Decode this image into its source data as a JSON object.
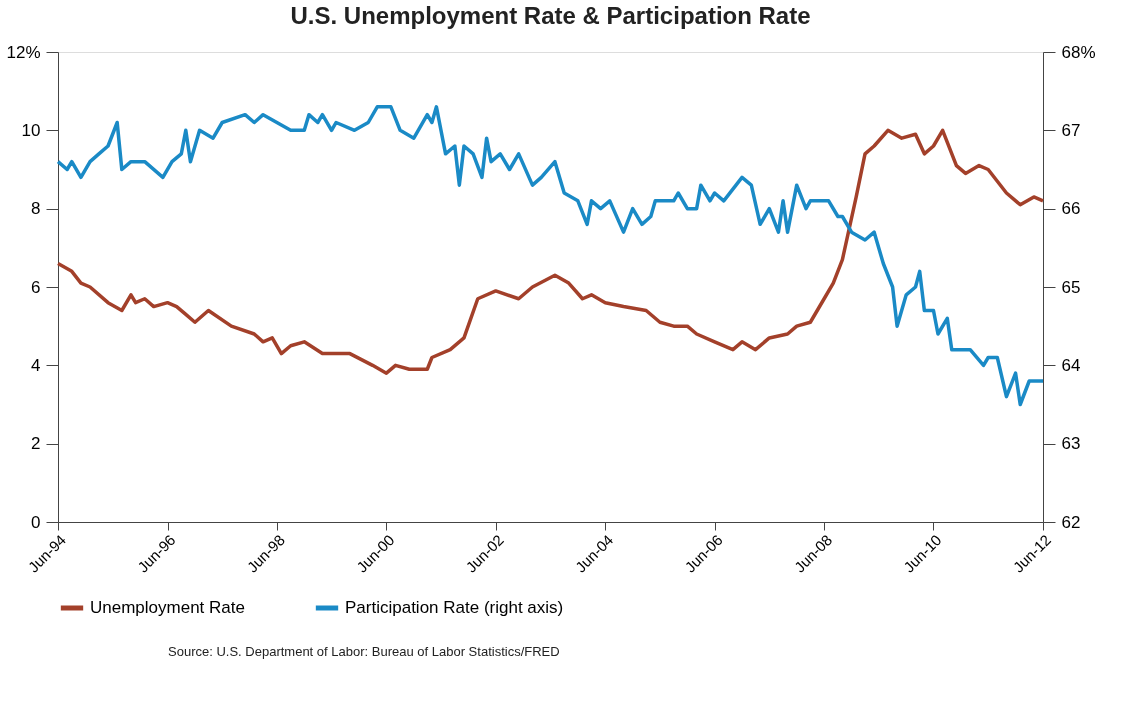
{
  "chart_data": {
    "type": "line",
    "title": "U.S. Unemployment Rate & Participation Rate",
    "annotations": [
      "Source: U.S. Department of Labor: Bureau of Labor Statistics/FRED"
    ],
    "xlim": [
      "1994-06",
      "2012-06"
    ],
    "xticks": [
      {
        "value": "1994-06",
        "label": "Jun-94"
      },
      {
        "value": "1996-06",
        "label": "Jun-96"
      },
      {
        "value": "1998-06",
        "label": "Jun-98"
      },
      {
        "value": "2000-06",
        "label": "Jun-00"
      },
      {
        "value": "2002-06",
        "label": "Jun-02"
      },
      {
        "value": "2004-06",
        "label": "Jun-04"
      },
      {
        "value": "2006-06",
        "label": "Jun-06"
      },
      {
        "value": "2008-06",
        "label": "Jun-08"
      },
      {
        "value": "2010-06",
        "label": "Jun-10"
      },
      {
        "value": "2012-06",
        "label": "Jun-12"
      }
    ],
    "ylim": [
      0,
      12
    ],
    "yticks": [
      0,
      2,
      4,
      6,
      8,
      10,
      {
        "value": 12,
        "label": "12%"
      }
    ],
    "y2lim": [
      62,
      68
    ],
    "y2ticks": [
      62,
      63,
      64,
      65,
      66,
      67,
      {
        "value": 68,
        "label": "68%"
      }
    ],
    "legend": "bottom",
    "grid": false,
    "line_style": "solid",
    "series": [
      {
        "name": "Unemployment Rate",
        "color": "#a3402a",
        "axis": "y",
        "x": [
          "1994-06",
          "1994-09",
          "1994-11",
          "1995-01",
          "1995-05",
          "1995-08",
          "1995-10",
          "1995-11",
          "1996-01",
          "1996-03",
          "1996-06",
          "1996-08",
          "1996-10",
          "1996-12",
          "1997-03",
          "1997-08",
          "1998-01",
          "1998-03",
          "1998-05",
          "1998-07",
          "1998-09",
          "1998-12",
          "1999-04",
          "1999-10",
          "2000-03",
          "2000-06",
          "2000-08",
          "2000-11",
          "2001-03",
          "2001-04",
          "2001-08",
          "2001-11",
          "2002-02",
          "2002-06",
          "2002-11",
          "2003-02",
          "2003-07",
          "2003-10",
          "2004-01",
          "2004-03",
          "2004-06",
          "2004-10",
          "2005-03",
          "2005-06",
          "2005-09",
          "2005-12",
          "2006-02",
          "2006-06",
          "2006-10",
          "2006-12",
          "2007-03",
          "2007-06",
          "2007-10",
          "2007-12",
          "2008-03",
          "2008-06",
          "2008-08",
          "2008-10",
          "2009-01",
          "2009-03",
          "2009-05",
          "2009-08",
          "2009-11",
          "2010-02",
          "2010-04",
          "2010-06",
          "2010-08",
          "2010-11",
          "2011-01",
          "2011-04",
          "2011-06",
          "2011-10",
          "2012-01",
          "2012-04",
          "2012-06"
        ],
        "values": [
          6.6,
          6.4,
          6.1,
          6.0,
          5.6,
          5.4,
          5.8,
          5.6,
          5.7,
          5.5,
          5.6,
          5.5,
          5.3,
          5.1,
          5.4,
          5.0,
          4.8,
          4.6,
          4.7,
          4.3,
          4.5,
          4.6,
          4.3,
          4.3,
          4.0,
          3.8,
          4.0,
          3.9,
          3.9,
          4.2,
          4.4,
          4.7,
          5.7,
          5.9,
          5.7,
          6.0,
          6.3,
          6.1,
          5.7,
          5.8,
          5.6,
          5.5,
          5.4,
          5.1,
          5.0,
          5.0,
          4.8,
          4.6,
          4.4,
          4.6,
          4.4,
          4.7,
          4.8,
          5.0,
          5.1,
          5.7,
          6.1,
          6.7,
          8.3,
          9.4,
          9.6,
          10.0,
          9.8,
          9.9,
          9.4,
          9.6,
          10.0,
          9.1,
          8.9,
          9.1,
          9.0,
          8.4,
          8.1,
          8.3,
          8.2
        ]
      },
      {
        "name": "Participation Rate (right axis)",
        "color": "#1a8ac6",
        "axis": "y2",
        "x": [
          "1994-06",
          "1994-08",
          "1994-09",
          "1994-11",
          "1995-01",
          "1995-03",
          "1995-05",
          "1995-07",
          "1995-08",
          "1995-10",
          "1996-01",
          "1996-05",
          "1996-07",
          "1996-09",
          "1996-10",
          "1996-11",
          "1997-01",
          "1997-04",
          "1997-06",
          "1997-11",
          "1998-01",
          "1998-03",
          "1998-06",
          "1998-09",
          "1998-12",
          "1999-01",
          "1999-03",
          "1999-04",
          "1999-06",
          "1999-07",
          "1999-11",
          "2000-02",
          "2000-04",
          "2000-07",
          "2000-09",
          "2000-12",
          "2001-03",
          "2001-04",
          "2001-05",
          "2001-07",
          "2001-09",
          "2001-10",
          "2001-11",
          "2002-01",
          "2002-03",
          "2002-04",
          "2002-05",
          "2002-07",
          "2002-09",
          "2002-11",
          "2003-02",
          "2003-04",
          "2003-07",
          "2003-09",
          "2003-12",
          "2004-02",
          "2004-03",
          "2004-05",
          "2004-07",
          "2004-10",
          "2004-12",
          "2005-02",
          "2005-04",
          "2005-05",
          "2005-09",
          "2005-10",
          "2005-12",
          "2006-02",
          "2006-03",
          "2006-05",
          "2006-06",
          "2006-08",
          "2006-12",
          "2007-02",
          "2007-04",
          "2007-06",
          "2007-08",
          "2007-09",
          "2007-10",
          "2007-12",
          "2008-02",
          "2008-03",
          "2008-07",
          "2008-09",
          "2008-10",
          "2008-12",
          "2009-03",
          "2009-05",
          "2009-07",
          "2009-09",
          "2009-10",
          "2009-12",
          "2010-02",
          "2010-03",
          "2010-04",
          "2010-06",
          "2010-07",
          "2010-09",
          "2010-10",
          "2011-02",
          "2011-05",
          "2011-06",
          "2011-08",
          "2011-10",
          "2011-12",
          "2012-01",
          "2012-03",
          "2012-06"
        ],
        "values": [
          66.6,
          66.5,
          66.6,
          66.4,
          66.6,
          66.7,
          66.8,
          67.1,
          66.5,
          66.6,
          66.6,
          66.4,
          66.6,
          66.7,
          67.0,
          66.6,
          67.0,
          66.9,
          67.1,
          67.2,
          67.1,
          67.2,
          67.1,
          67.0,
          67.0,
          67.2,
          67.1,
          67.2,
          67.0,
          67.1,
          67.0,
          67.1,
          67.3,
          67.3,
          67.0,
          66.9,
          67.2,
          67.1,
          67.3,
          66.7,
          66.8,
          66.3,
          66.8,
          66.7,
          66.4,
          66.9,
          66.6,
          66.7,
          66.5,
          66.7,
          66.3,
          66.4,
          66.6,
          66.2,
          66.1,
          65.8,
          66.1,
          66.0,
          66.1,
          65.7,
          66.0,
          65.8,
          65.9,
          66.1,
          66.1,
          66.2,
          66.0,
          66.0,
          66.3,
          66.1,
          66.2,
          66.1,
          66.4,
          66.3,
          65.8,
          66.0,
          65.7,
          66.1,
          65.7,
          66.3,
          66.0,
          66.1,
          66.1,
          65.9,
          65.9,
          65.7,
          65.6,
          65.7,
          65.3,
          65.0,
          64.5,
          64.9,
          65.0,
          65.2,
          64.7,
          64.7,
          64.4,
          64.6,
          64.2,
          64.2,
          64.0,
          64.1,
          64.1,
          63.6,
          63.9,
          63.5,
          63.8,
          63.8
        ]
      }
    ]
  }
}
